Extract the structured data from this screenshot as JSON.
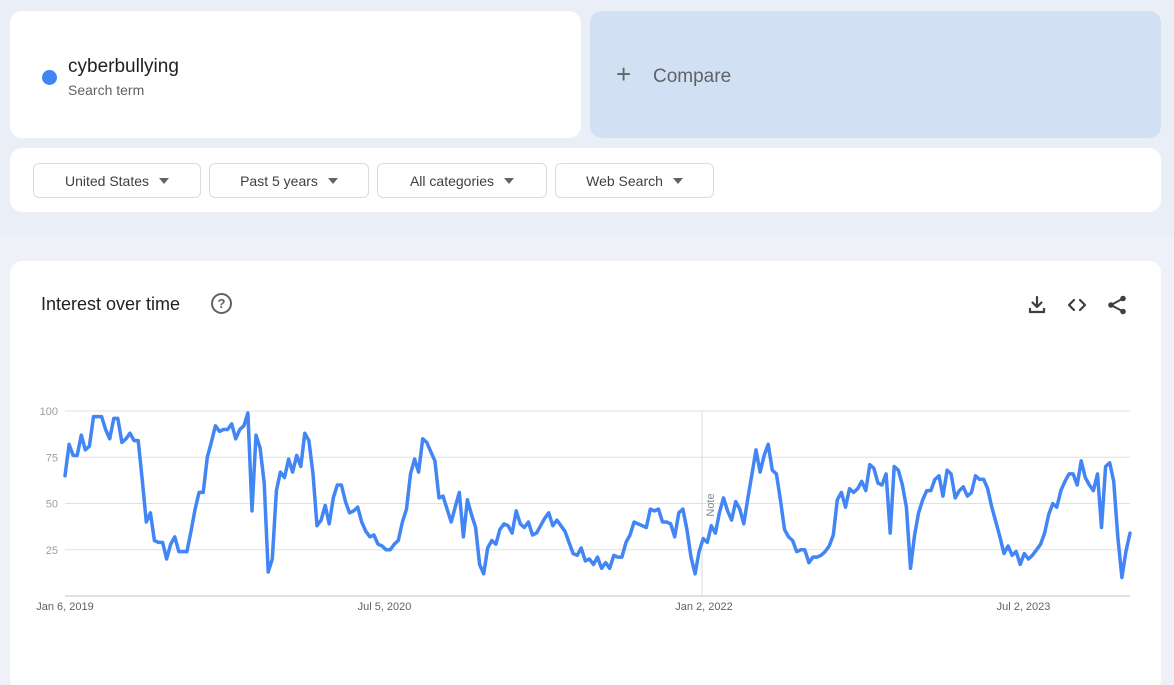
{
  "search_term": {
    "name": "cyberbullying",
    "subtitle": "Search term",
    "color": "#4285f4"
  },
  "compare": {
    "plus": "+",
    "label": "Compare"
  },
  "filters": [
    {
      "label": "United States"
    },
    {
      "label": "Past 5 years"
    },
    {
      "label": "All categories"
    },
    {
      "label": "Web Search"
    }
  ],
  "chart_section": {
    "title": "Interest over time",
    "help_icon": "?",
    "tools": [
      "download-icon",
      "embed-code-icon",
      "share-icon"
    ]
  },
  "chart_data": {
    "type": "line",
    "title": "Interest over time",
    "xlabel": "",
    "ylabel": "",
    "ylim": [
      0,
      100
    ],
    "y_ticks": [
      "25",
      "50",
      "75",
      "100"
    ],
    "grid": true,
    "x_tick_labels": [
      "Jan 6, 2019",
      "Jul 5, 2020",
      "Jan 2, 2022",
      "Jul 2, 2023"
    ],
    "annotation": {
      "label": "Note",
      "at": "Jan 2, 2022"
    },
    "series": [
      {
        "color": "#4285f4",
        "values": [
          65,
          82,
          76,
          76,
          87,
          79,
          81,
          97,
          97,
          97,
          90,
          85,
          96,
          96,
          83,
          85,
          88,
          84,
          84,
          63,
          40,
          45,
          30,
          29,
          29,
          20,
          28,
          32,
          24,
          24,
          24,
          35,
          47,
          56,
          56,
          75,
          83,
          92,
          89,
          90,
          90,
          93,
          85,
          90,
          92,
          99,
          46,
          87,
          80,
          61,
          13,
          20,
          57,
          67,
          64,
          74,
          67,
          76,
          70,
          88,
          84,
          66,
          38,
          41,
          49,
          39,
          53,
          60,
          60,
          51,
          45,
          46,
          48,
          40,
          35,
          32,
          33,
          28,
          27,
          25,
          25,
          28,
          30,
          40,
          47,
          66,
          74,
          67,
          85,
          83,
          78,
          73,
          53,
          54,
          47,
          40,
          48,
          56,
          32,
          52,
          44,
          37,
          17,
          12,
          26,
          30,
          28,
          36,
          39,
          38,
          34,
          46,
          39,
          37,
          40,
          33,
          34,
          38,
          42,
          45,
          38,
          41,
          38,
          35,
          29,
          23,
          22,
          26,
          19,
          20,
          17,
          21,
          15,
          18,
          15,
          22,
          21,
          21,
          29,
          33,
          40,
          39,
          38,
          37,
          47,
          46,
          47,
          40,
          40,
          39,
          32,
          45,
          47,
          36,
          21,
          12,
          24,
          31,
          29,
          38,
          34,
          45,
          53,
          46,
          41,
          51,
          47,
          39,
          53,
          66,
          79,
          67,
          76,
          82,
          68,
          66,
          52,
          36,
          32,
          30,
          24,
          25,
          25,
          18,
          21,
          21,
          22,
          24,
          27,
          33,
          52,
          56,
          48,
          58,
          56,
          58,
          62,
          57,
          71,
          69,
          61,
          60,
          66,
          34,
          70,
          68,
          60,
          48,
          15,
          33,
          45,
          52,
          57,
          57,
          63,
          65,
          54,
          68,
          66,
          53,
          57,
          59,
          54,
          56,
          65,
          63,
          63,
          58,
          48,
          40,
          32,
          23,
          27,
          22,
          24,
          17,
          23,
          20,
          22,
          25,
          28,
          34,
          44,
          50,
          48,
          57,
          62,
          66,
          66,
          60,
          73,
          64,
          60,
          57,
          66,
          37,
          70,
          72,
          62,
          32,
          10,
          24,
          34
        ]
      }
    ]
  }
}
